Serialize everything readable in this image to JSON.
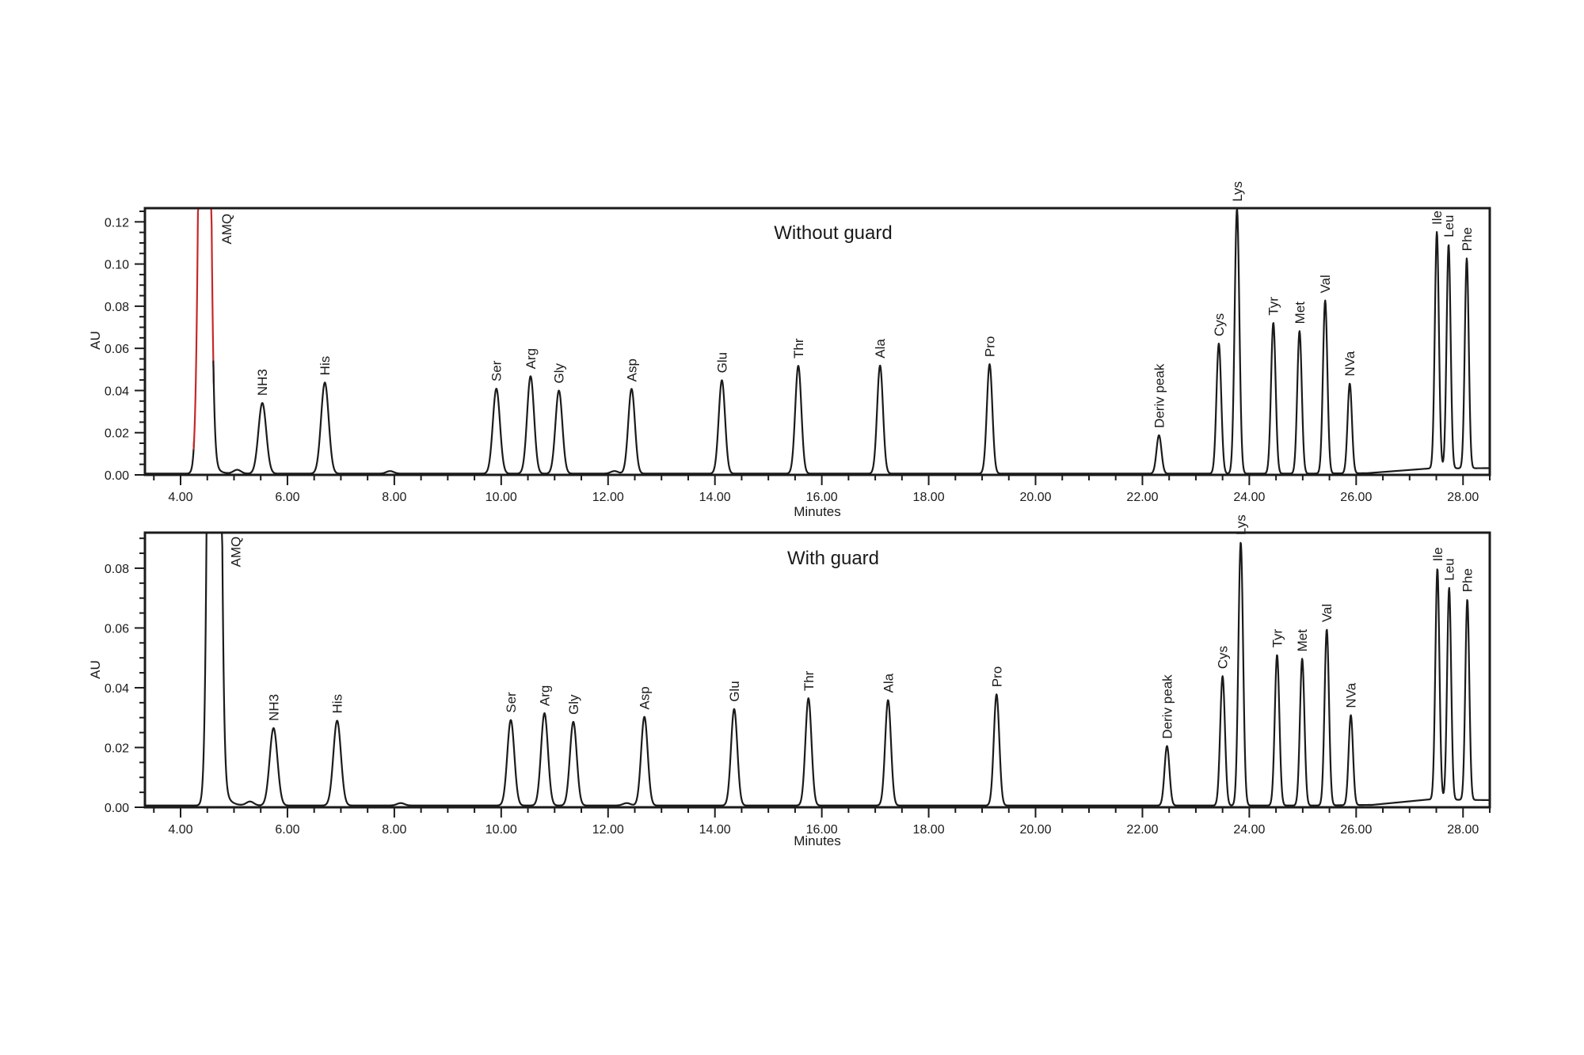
{
  "page": {
    "background": "#ffffff",
    "trace_color": "#1b1b1b",
    "accent_red": "#c62828"
  },
  "chart_data": [
    {
      "type": "line",
      "id": "without-guard",
      "title": "Without guard",
      "xlabel": "Minutes",
      "ylabel": "AU",
      "x_axis": {
        "min": 3.333,
        "max": 28.5,
        "minor_step": 0.5,
        "ticks": [
          {
            "v": 4,
            "label": "4.00"
          },
          {
            "v": 6,
            "label": "6.00"
          },
          {
            "v": 8,
            "label": "8.00"
          },
          {
            "v": 10,
            "label": "10.00"
          },
          {
            "v": 12,
            "label": "12.00"
          },
          {
            "v": 14,
            "label": "14.00"
          },
          {
            "v": 16,
            "label": "16.00"
          },
          {
            "v": 18,
            "label": "18.00"
          },
          {
            "v": 20,
            "label": "20.00"
          },
          {
            "v": 22,
            "label": "22.00"
          },
          {
            "v": 24,
            "label": "24.00"
          },
          {
            "v": 26,
            "label": "26.00"
          },
          {
            "v": 28,
            "label": "28.00"
          }
        ]
      },
      "y_axis": {
        "min": 0,
        "max": 0.1265,
        "minor_step": 0.005,
        "ticks": [
          {
            "v": 0.0,
            "label": "0.00"
          },
          {
            "v": 0.02,
            "label": "0.02"
          },
          {
            "v": 0.04,
            "label": "0.04"
          },
          {
            "v": 0.06,
            "label": "0.06"
          },
          {
            "v": 0.08,
            "label": "0.08"
          },
          {
            "v": 0.1,
            "label": "0.10"
          },
          {
            "v": 0.12,
            "label": "0.12"
          }
        ]
      },
      "overlay_segment": {
        "t_start": 4.25,
        "t_end": 4.62,
        "color": "#c62828",
        "note": "AMQ peak drawn in red"
      },
      "peaks": [
        {
          "name": "AMQ",
          "retention_min": 4.45,
          "height_au": 0.5,
          "offscale": true,
          "tail": {
            "a": 0.05,
            "tau": 0.08
          },
          "label_t": 4.86,
          "label_au": 0.106
        },
        {
          "name": "NH3",
          "retention_min": 5.53,
          "height_au": 0.0335
        },
        {
          "name": "His",
          "retention_min": 6.7,
          "height_au": 0.0432
        },
        {
          "name": "Ser",
          "retention_min": 9.91,
          "height_au": 0.0403
        },
        {
          "name": "Arg",
          "retention_min": 10.55,
          "height_au": 0.0462
        },
        {
          "name": "Gly",
          "retention_min": 11.08,
          "height_au": 0.0394
        },
        {
          "name": "Asp",
          "retention_min": 12.44,
          "height_au": 0.0402
        },
        {
          "name": "Glu",
          "retention_min": 14.13,
          "height_au": 0.0443
        },
        {
          "name": "Thr",
          "retention_min": 15.56,
          "height_au": 0.0512
        },
        {
          "name": "Ala",
          "retention_min": 17.09,
          "height_au": 0.0513
        },
        {
          "name": "Pro",
          "retention_min": 19.14,
          "height_au": 0.0519
        },
        {
          "name": "Deriv peak",
          "retention_min": 22.31,
          "height_au": 0.0182
        },
        {
          "name": "Cys",
          "retention_min": 23.43,
          "height_au": 0.0617
        },
        {
          "name": "Lys",
          "retention_min": 23.77,
          "height_au": 0.1256
        },
        {
          "name": "Tyr",
          "retention_min": 24.45,
          "height_au": 0.0716
        },
        {
          "name": "Met",
          "retention_min": 24.94,
          "height_au": 0.0676
        },
        {
          "name": "Val",
          "retention_min": 25.42,
          "height_au": 0.0821
        },
        {
          "name": "NVa",
          "retention_min": 25.88,
          "height_au": 0.0426
        },
        {
          "name": "Ile",
          "retention_min": 27.51,
          "height_au": 0.1122
        },
        {
          "name": "Leu",
          "retention_min": 27.73,
          "height_au": 0.1062
        },
        {
          "name": "Phe",
          "retention_min": 28.07,
          "height_au": 0.0996
        }
      ],
      "unlabeled_bumps": [
        {
          "t": 5.06,
          "h": 0.0018
        },
        {
          "t": 7.92,
          "h": 0.0012
        },
        {
          "t": 12.12,
          "h": 0.0012
        }
      ],
      "baseline_nodes": [
        [
          3.333,
          0.0006
        ],
        [
          25.0,
          0.0006
        ],
        [
          26.2,
          0.0008
        ],
        [
          27.35,
          0.003
        ],
        [
          28.5,
          0.0032
        ]
      ]
    },
    {
      "type": "line",
      "id": "with-guard",
      "title": "With guard",
      "xlabel": "Minutes",
      "ylabel": "AU",
      "x_axis": {
        "min": 3.333,
        "max": 28.5,
        "minor_step": 0.5,
        "ticks": [
          {
            "v": 4,
            "label": "4.00"
          },
          {
            "v": 6,
            "label": "6.00"
          },
          {
            "v": 8,
            "label": "8.00"
          },
          {
            "v": 10,
            "label": "10.00"
          },
          {
            "v": 12,
            "label": "12.00"
          },
          {
            "v": 14,
            "label": "14.00"
          },
          {
            "v": 16,
            "label": "16.00"
          },
          {
            "v": 18,
            "label": "18.00"
          },
          {
            "v": 20,
            "label": "20.00"
          },
          {
            "v": 22,
            "label": "22.00"
          },
          {
            "v": 24,
            "label": "24.00"
          },
          {
            "v": 26,
            "label": "26.00"
          },
          {
            "v": 28,
            "label": "28.00"
          }
        ]
      },
      "y_axis": {
        "min": 0,
        "max": 0.0919,
        "minor_step": 0.005,
        "ticks": [
          {
            "v": 0.0,
            "label": "0.00"
          },
          {
            "v": 0.02,
            "label": "0.02"
          },
          {
            "v": 0.04,
            "label": "0.04"
          },
          {
            "v": 0.06,
            "label": "0.06"
          },
          {
            "v": 0.08,
            "label": "0.08"
          }
        ]
      },
      "peaks": [
        {
          "name": "AMQ",
          "retention_min": 4.63,
          "height_au": 0.6,
          "offscale": true,
          "tail": {
            "a": 0.05,
            "tau": 0.09
          },
          "label_t": 5.03,
          "label_au": 0.078
        },
        {
          "name": "NH3",
          "retention_min": 5.74,
          "height_au": 0.0259
        },
        {
          "name": "His",
          "retention_min": 6.93,
          "height_au": 0.0284
        },
        {
          "name": "Ser",
          "retention_min": 10.18,
          "height_au": 0.0286
        },
        {
          "name": "Arg",
          "retention_min": 10.81,
          "height_au": 0.0309
        },
        {
          "name": "Gly",
          "retention_min": 11.35,
          "height_au": 0.028
        },
        {
          "name": "Asp",
          "retention_min": 12.68,
          "height_au": 0.0297
        },
        {
          "name": "Glu",
          "retention_min": 14.36,
          "height_au": 0.0323
        },
        {
          "name": "Thr",
          "retention_min": 15.75,
          "height_au": 0.0359
        },
        {
          "name": "Ala",
          "retention_min": 17.24,
          "height_au": 0.0353
        },
        {
          "name": "Pro",
          "retention_min": 19.27,
          "height_au": 0.0372
        },
        {
          "name": "Deriv peak",
          "retention_min": 22.46,
          "height_au": 0.0199
        },
        {
          "name": "Cys",
          "retention_min": 23.5,
          "height_au": 0.0433
        },
        {
          "name": "Lys",
          "retention_min": 23.84,
          "height_au": 0.0881
        },
        {
          "name": "Tyr",
          "retention_min": 24.52,
          "height_au": 0.0504
        },
        {
          "name": "Met",
          "retention_min": 24.99,
          "height_au": 0.0491
        },
        {
          "name": "Val",
          "retention_min": 25.45,
          "height_au": 0.0589
        },
        {
          "name": "NVa",
          "retention_min": 25.9,
          "height_au": 0.0301
        },
        {
          "name": "Ile",
          "retention_min": 27.52,
          "height_au": 0.0773
        },
        {
          "name": "Leu",
          "retention_min": 27.74,
          "height_au": 0.0709
        },
        {
          "name": "Phe",
          "retention_min": 28.08,
          "height_au": 0.0671
        }
      ],
      "unlabeled_bumps": [
        {
          "t": 5.3,
          "h": 0.0013
        },
        {
          "t": 8.12,
          "h": 0.0008
        },
        {
          "t": 12.35,
          "h": 0.0008
        }
      ],
      "baseline_nodes": [
        [
          3.333,
          0.0006
        ],
        [
          25.2,
          0.0006
        ],
        [
          26.3,
          0.0008
        ],
        [
          27.35,
          0.0026
        ],
        [
          28.5,
          0.0024
        ]
      ]
    }
  ]
}
